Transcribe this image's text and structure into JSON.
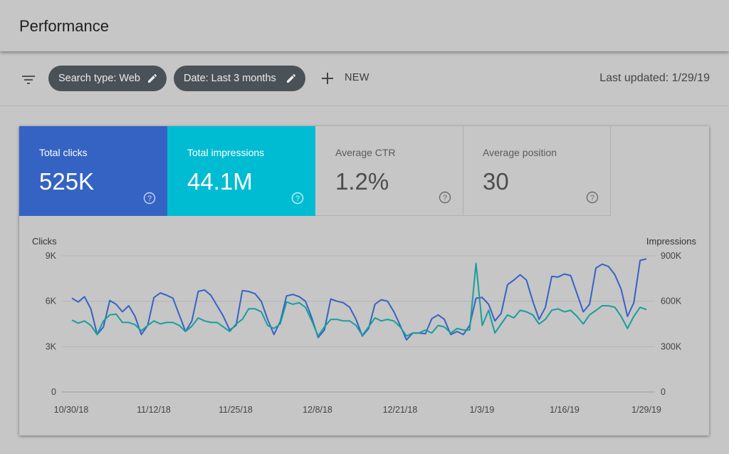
{
  "header": {
    "title": "Performance"
  },
  "filters": {
    "search_type_chip": "Search type: Web",
    "date_chip": "Date: Last 3 months",
    "new_label": "NEW",
    "last_updated": "Last updated: 1/29/19"
  },
  "icons": {
    "filter": "filter-lines-icon",
    "edit": "pencil-icon",
    "add": "plus-icon",
    "help": "question-circle-icon"
  },
  "colors": {
    "clicks": "#3563c4",
    "impressions": "#00bcd3",
    "impressions_line": "#1a9e9c",
    "chip_bg": "#4a5257"
  },
  "metrics": [
    {
      "label": "Total clicks",
      "value": "525K"
    },
    {
      "label": "Total impressions",
      "value": "44.1M"
    },
    {
      "label": "Average CTR",
      "value": "1.2%"
    },
    {
      "label": "Average position",
      "value": "30"
    }
  ],
  "chart_data": {
    "type": "line",
    "ylabel_left": "Clicks",
    "ylabel_right": "Impressions",
    "yticks_left": [
      "9K",
      "6K",
      "3K",
      "0"
    ],
    "yticks_right": [
      "900K",
      "600K",
      "300K",
      "0"
    ],
    "xticks": [
      "10/30/18",
      "11/12/18",
      "11/25/18",
      "12/8/18",
      "12/21/18",
      "1/3/19",
      "1/16/19",
      "1/29/19"
    ],
    "ylim_left": [
      0,
      9000
    ],
    "ylim_right": [
      0,
      900000
    ],
    "grid": true,
    "x_start": "10/30/18",
    "x_end": "1/29/19",
    "series": [
      {
        "axis": "left",
        "color": "#3563c4",
        "values": [
          6200,
          5950,
          6300,
          5500,
          3800,
          4300,
          6050,
          5800,
          5300,
          5700,
          5000,
          3800,
          4400,
          6250,
          6550,
          6400,
          6200,
          5100,
          4000,
          4700,
          6650,
          6750,
          6400,
          5700,
          5000,
          4100,
          4400,
          6700,
          6650,
          6500,
          6000,
          4800,
          3800,
          4650,
          6350,
          6450,
          6300,
          6000,
          4900,
          3600,
          4100,
          6150,
          6000,
          5900,
          5600,
          4800,
          3700,
          4200,
          5800,
          6100,
          6000,
          5300,
          4400,
          3450,
          3900,
          3900,
          3850,
          4850,
          5100,
          4800,
          3800,
          4000,
          3800,
          4400,
          6200,
          6250,
          5800,
          4700,
          5200,
          7100,
          7400,
          7750,
          7400,
          6000,
          4800,
          5600,
          7650,
          7600,
          7800,
          7700,
          6500,
          5300,
          5800,
          8200,
          8450,
          8300,
          7750,
          6800,
          5000,
          5900,
          8700,
          8800
        ]
      },
      {
        "axis": "right",
        "color": "#1a9e9c",
        "values": [
          475000,
          455000,
          470000,
          440000,
          380000,
          470000,
          510000,
          515000,
          460000,
          460000,
          445000,
          405000,
          440000,
          470000,
          450000,
          460000,
          460000,
          440000,
          400000,
          435000,
          490000,
          470000,
          460000,
          460000,
          430000,
          400000,
          450000,
          480000,
          550000,
          550000,
          530000,
          440000,
          420000,
          450000,
          595000,
          580000,
          590000,
          560000,
          470000,
          370000,
          430000,
          480000,
          480000,
          470000,
          470000,
          440000,
          375000,
          430000,
          490000,
          470000,
          480000,
          470000,
          430000,
          370000,
          390000,
          390000,
          410000,
          390000,
          440000,
          430000,
          390000,
          420000,
          410000,
          410000,
          850000,
          440000,
          540000,
          390000,
          450000,
          510000,
          490000,
          540000,
          530000,
          510000,
          450000,
          480000,
          540000,
          550000,
          530000,
          540000,
          500000,
          450000,
          510000,
          540000,
          570000,
          570000,
          560000,
          500000,
          420000,
          500000,
          560000,
          545000
        ]
      }
    ]
  }
}
